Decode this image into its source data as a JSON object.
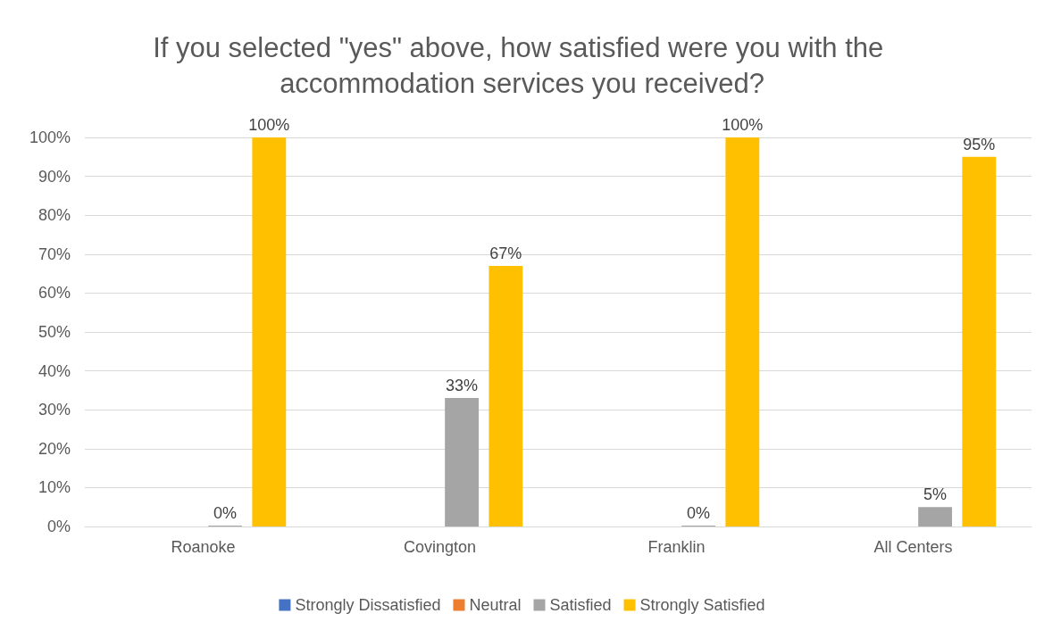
{
  "chart_data": {
    "type": "bar",
    "title": "If you selected \"yes\" above, how satisfied were you with the accommodation services you received?",
    "categories": [
      "Roanoke",
      "Covington",
      "Franklin",
      "All Centers"
    ],
    "series": [
      {
        "name": "Strongly Dissatisfied",
        "color": "#4472c4",
        "values": [
          null,
          null,
          null,
          null
        ]
      },
      {
        "name": "Neutral",
        "color": "#ed7d31",
        "values": [
          null,
          null,
          null,
          null
        ]
      },
      {
        "name": "Satisfied",
        "color": "#a5a5a5",
        "values": [
          0,
          33,
          0,
          5
        ],
        "value_labels": [
          "0%",
          "33%",
          "0%",
          "5%"
        ]
      },
      {
        "name": "Strongly Satisfied",
        "color": "#ffc000",
        "values": [
          100,
          67,
          100,
          95
        ],
        "value_labels": [
          "100%",
          "67%",
          "100%",
          "95%"
        ]
      }
    ],
    "ylim": [
      0,
      100
    ],
    "yticks": [
      {
        "value": 0,
        "label": "0%"
      },
      {
        "value": 10,
        "label": "10%"
      },
      {
        "value": 20,
        "label": "20%"
      },
      {
        "value": 30,
        "label": "30%"
      },
      {
        "value": 40,
        "label": "40%"
      },
      {
        "value": 50,
        "label": "50%"
      },
      {
        "value": 60,
        "label": "60%"
      },
      {
        "value": 70,
        "label": "70%"
      },
      {
        "value": 80,
        "label": "80%"
      },
      {
        "value": 90,
        "label": "90%"
      },
      {
        "value": 100,
        "label": "100%"
      }
    ],
    "grid": "y",
    "legend": "bottom"
  }
}
